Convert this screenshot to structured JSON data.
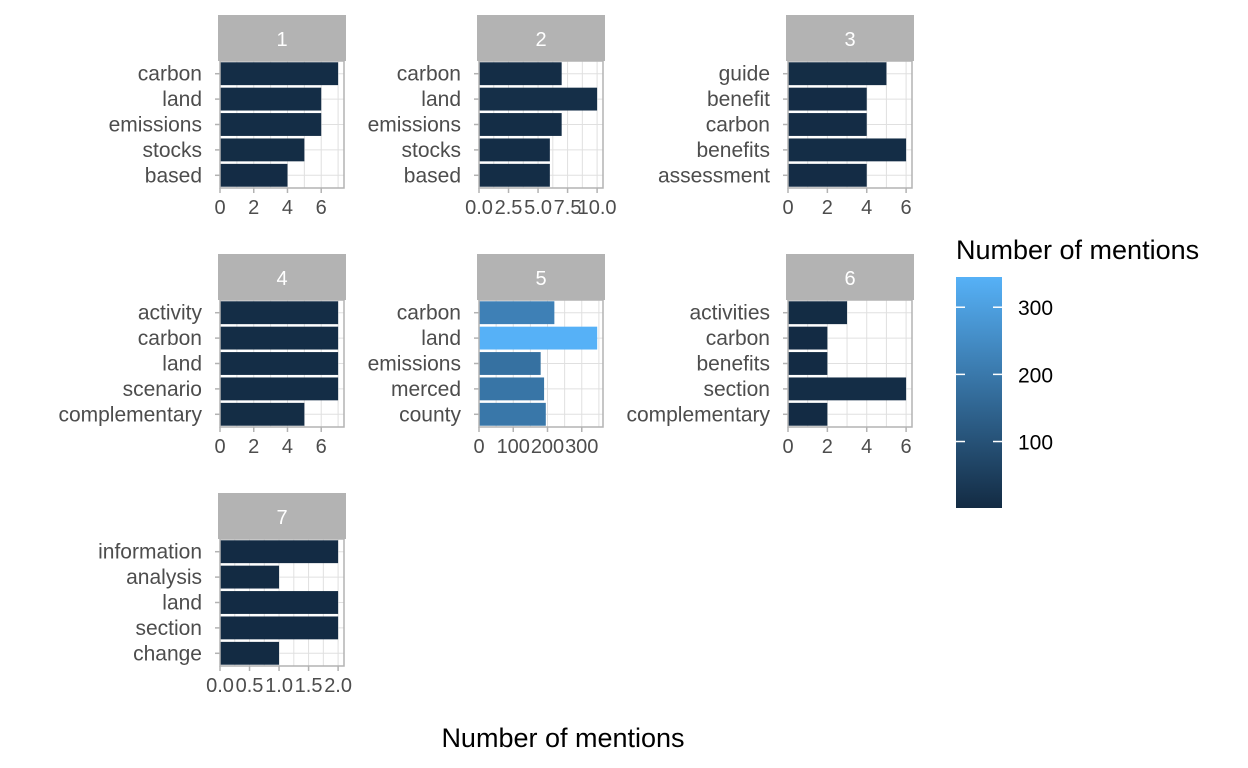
{
  "chart_data": {
    "type": "bar",
    "orientation": "horizontal",
    "xlabel": "Number of mentions",
    "ylabel": "",
    "grid": true,
    "legend": {
      "title": "Number of mentions",
      "placement": "right",
      "ticks": [
        100,
        200,
        300
      ],
      "range": [
        1,
        345
      ],
      "color_low": "#132B43",
      "color_high": "#56B1F7"
    },
    "strip_color": "#b3b3b3",
    "panels": [
      {
        "label": "1",
        "categories": [
          "carbon",
          "land",
          "emissions",
          "stocks",
          "based"
        ],
        "values": [
          7,
          6,
          6,
          5,
          4
        ],
        "xlim": [
          0,
          7.35
        ],
        "ticks": [
          0,
          2,
          4,
          6
        ],
        "tick_labels": [
          "0",
          "2",
          "4",
          "6"
        ]
      },
      {
        "label": "2",
        "categories": [
          "carbon",
          "land",
          "emissions",
          "stocks",
          "based"
        ],
        "values": [
          7,
          10,
          7,
          6,
          6
        ],
        "xlim": [
          0,
          10.5
        ],
        "ticks": [
          0,
          2.5,
          5,
          7.5,
          10
        ],
        "tick_labels": [
          "0.0",
          "2.5",
          "5.0",
          "7.5",
          "10.0"
        ]
      },
      {
        "label": "3",
        "categories": [
          "guide",
          "benefit",
          "carbon",
          "benefits",
          "assessment"
        ],
        "values": [
          5,
          4,
          4,
          6,
          4
        ],
        "xlim": [
          0,
          6.3
        ],
        "ticks": [
          0,
          2,
          4,
          6
        ],
        "tick_labels": [
          "0",
          "2",
          "4",
          "6"
        ]
      },
      {
        "label": "4",
        "categories": [
          "activity",
          "carbon",
          "land",
          "scenario",
          "complementary"
        ],
        "values": [
          7,
          7,
          7,
          7,
          5
        ],
        "xlim": [
          0,
          7.35
        ],
        "ticks": [
          0,
          2,
          4,
          6
        ],
        "tick_labels": [
          "0",
          "2",
          "4",
          "6"
        ]
      },
      {
        "label": "5",
        "categories": [
          "carbon",
          "land",
          "emissions",
          "merced",
          "county"
        ],
        "values": [
          220,
          345,
          180,
          190,
          195
        ],
        "xlim": [
          0,
          362
        ],
        "ticks": [
          0,
          100,
          200,
          300
        ],
        "tick_labels": [
          "0",
          "100",
          "200",
          "300"
        ]
      },
      {
        "label": "6",
        "categories": [
          "activities",
          "carbon",
          "benefits",
          "section",
          "complementary"
        ],
        "values": [
          3,
          2,
          2,
          6,
          2
        ],
        "xlim": [
          0,
          6.3
        ],
        "ticks": [
          0,
          2,
          4,
          6
        ],
        "tick_labels": [
          "0",
          "2",
          "4",
          "6"
        ]
      },
      {
        "label": "7",
        "categories": [
          "information",
          "analysis",
          "land",
          "section",
          "change"
        ],
        "values": [
          2,
          1,
          2,
          2,
          1
        ],
        "xlim": [
          0,
          2.1
        ],
        "ticks": [
          0,
          0.5,
          1,
          1.5,
          2
        ],
        "tick_labels": [
          "0.0",
          "0.5",
          "1.0",
          "1.5",
          "2.0"
        ]
      }
    ]
  }
}
